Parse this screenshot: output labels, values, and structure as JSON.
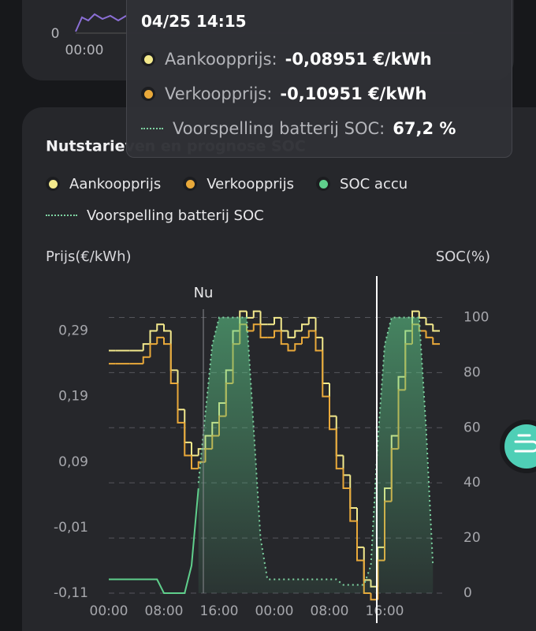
{
  "top_card": {
    "ytick": "0",
    "xtick": "00:00"
  },
  "tooltip": {
    "time": "04/25 14:15",
    "rows": [
      {
        "label": "Aankoopprijs:",
        "value": "-0,08951 €/kWh"
      },
      {
        "label": "Verkoopprijs:",
        "value": "-0,10951 €/kWh"
      },
      {
        "label": "Voorspelling batterij SOC:",
        "value": "67,2 %"
      }
    ]
  },
  "chart_data": {
    "type": "line",
    "title": "Nutstarieven en prognose SOC",
    "y_label": "Prijs(€/kWh)",
    "y2_label": "SOC(%)",
    "annotation": "Nu",
    "categories": [
      "00:00",
      null,
      null,
      null,
      null,
      null,
      null,
      null,
      "08:00",
      null,
      null,
      null,
      null,
      null,
      null,
      null,
      "16:00",
      null,
      null,
      null,
      null,
      null,
      null,
      null,
      "00:00",
      null,
      null,
      null,
      null,
      null,
      null,
      null,
      "08:00",
      null,
      null,
      null,
      null,
      null,
      null,
      null,
      "16:00",
      null,
      null,
      null,
      null,
      null,
      null,
      null
    ],
    "ylim": [
      -0.11,
      0.34
    ],
    "yticks": [
      {
        "value": 0.29,
        "label": "0,29"
      },
      {
        "value": 0.19,
        "label": "0,19"
      },
      {
        "value": 0.09,
        "label": "0,09"
      },
      {
        "value": -0.01,
        "label": "-0,01"
      },
      {
        "value": -0.11,
        "label": "-0,11"
      }
    ],
    "y2lim": [
      0,
      107
    ],
    "y2ticks": [
      100,
      80,
      60,
      40,
      20,
      0
    ],
    "grid": true,
    "series": [
      {
        "name": "Aankoopprijs",
        "color": "#f3e98c",
        "style": "step",
        "values": [
          0.26,
          0.26,
          0.26,
          0.26,
          0.26,
          0.27,
          0.29,
          0.3,
          0.29,
          0.23,
          0.17,
          0.12,
          0.1,
          0.11,
          0.13,
          0.15,
          0.18,
          0.23,
          0.29,
          0.32,
          0.31,
          0.32,
          0.3,
          0.3,
          0.31,
          0.29,
          0.28,
          0.29,
          0.3,
          0.31,
          0.28,
          0.21,
          0.16,
          0.1,
          0.07,
          0.02,
          -0.04,
          -0.09,
          -0.1,
          -0.04,
          0.05,
          0.13,
          0.22,
          0.29,
          0.32,
          0.31,
          0.3,
          0.29
        ]
      },
      {
        "name": "Verkoopprijs",
        "color": "#e9a93a",
        "style": "step",
        "values": [
          0.24,
          0.24,
          0.24,
          0.24,
          0.24,
          0.25,
          0.27,
          0.28,
          0.27,
          0.21,
          0.15,
          0.1,
          0.08,
          0.09,
          0.11,
          0.13,
          0.16,
          0.21,
          0.27,
          0.3,
          0.29,
          0.3,
          0.28,
          0.28,
          0.29,
          0.27,
          0.26,
          0.27,
          0.28,
          0.29,
          0.26,
          0.19,
          0.14,
          0.08,
          0.05,
          0.0,
          -0.06,
          -0.11,
          -0.12,
          -0.06,
          0.03,
          0.11,
          0.2,
          0.27,
          0.3,
          0.29,
          0.28,
          0.27
        ]
      },
      {
        "name": "SOC accu",
        "color": "#5fcf8c",
        "style": "solid",
        "axis": "y2",
        "values": [
          5,
          5,
          5,
          5,
          5,
          5,
          5,
          5,
          0,
          0,
          0,
          0,
          10,
          38,
          null,
          null,
          null,
          null,
          null,
          null,
          null,
          null,
          null,
          null,
          null,
          null,
          null,
          null,
          null,
          null,
          null,
          null,
          null,
          null,
          null,
          null,
          null,
          null,
          null,
          null,
          null,
          null,
          null,
          null,
          null,
          null,
          null,
          null
        ]
      },
      {
        "name": "Voorspelling batterij SOC",
        "color": "#7ed3a2",
        "style": "dotted",
        "axis": "y2",
        "values": [
          null,
          null,
          null,
          null,
          null,
          null,
          null,
          null,
          null,
          null,
          null,
          null,
          null,
          40,
          65,
          90,
          100,
          100,
          100,
          100,
          100,
          60,
          20,
          5,
          5,
          5,
          5,
          5,
          5,
          5,
          5,
          5,
          5,
          5,
          3,
          3,
          3,
          3,
          10,
          55,
          90,
          100,
          100,
          100,
          100,
          100,
          60,
          10
        ]
      }
    ]
  }
}
